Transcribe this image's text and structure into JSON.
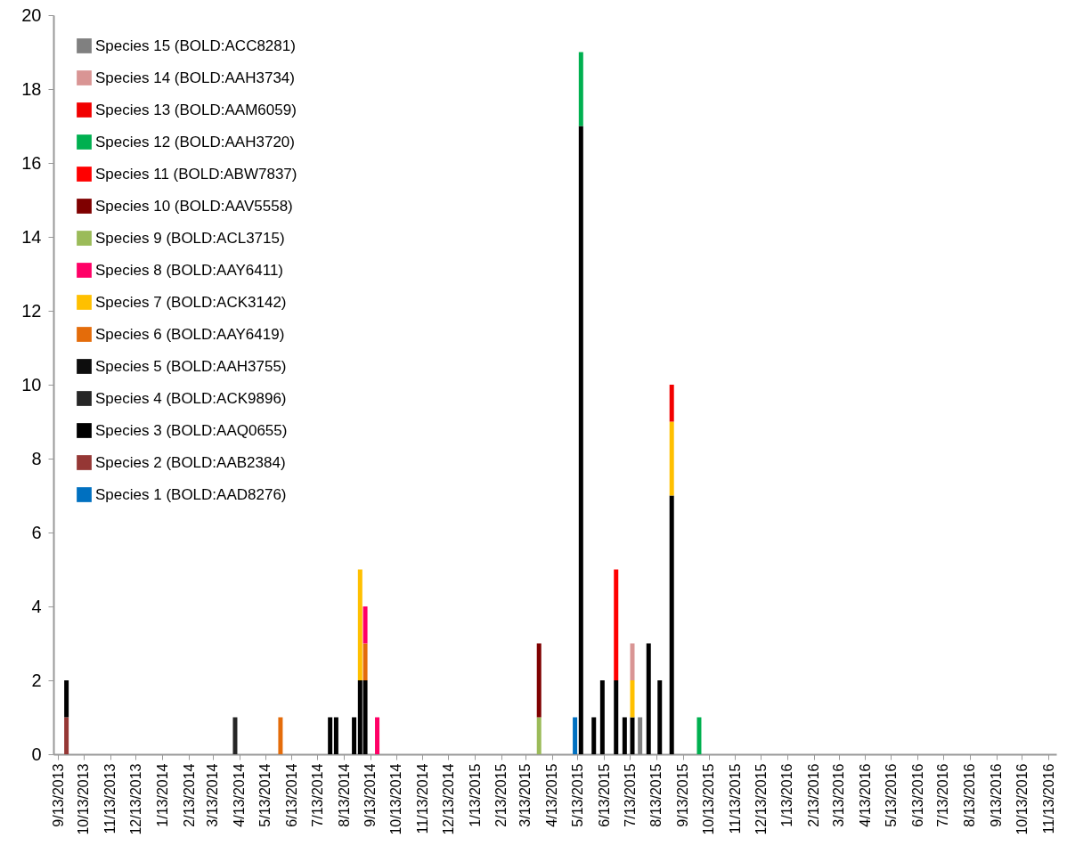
{
  "chart_data": {
    "type": "bar",
    "stacked": true,
    "legend": "top left",
    "grid": false,
    "x": [
      "2013-09-23",
      "2014-04-08",
      "2014-05-31",
      "2014-07-28",
      "2014-08-04",
      "2014-08-25",
      "2014-09-01",
      "2014-09-07",
      "2014-09-21",
      "2015-03-29",
      "2015-05-10",
      "2015-05-17",
      "2015-06-01",
      "2015-06-11",
      "2015-06-27",
      "2015-07-07",
      "2015-07-16",
      "2015-07-25",
      "2015-08-04",
      "2015-08-17",
      "2015-08-31",
      "2015-10-02"
    ],
    "xlim": [
      "2013-09-13",
      "2016-11-17"
    ],
    "xticks": [
      {
        "value": "2013-09-13",
        "label": "9/13/2013"
      },
      {
        "value": "2013-10-13",
        "label": "10/13/2013"
      },
      {
        "value": "2013-11-13",
        "label": "11/13/2013"
      },
      {
        "value": "2013-12-13",
        "label": "12/13/2013"
      },
      {
        "value": "2014-01-13",
        "label": "1/13/2014"
      },
      {
        "value": "2014-02-13",
        "label": "2/13/2014"
      },
      {
        "value": "2014-03-13",
        "label": "3/13/2014"
      },
      {
        "value": "2014-04-13",
        "label": "4/13/2014"
      },
      {
        "value": "2014-05-13",
        "label": "5/13/2014"
      },
      {
        "value": "2014-06-13",
        "label": "6/13/2014"
      },
      {
        "value": "2014-07-13",
        "label": "7/13/2014"
      },
      {
        "value": "2014-08-13",
        "label": "8/13/2014"
      },
      {
        "value": "2014-09-13",
        "label": "9/13/2014"
      },
      {
        "value": "2014-10-13",
        "label": "10/13/2014"
      },
      {
        "value": "2014-11-13",
        "label": "11/13/2014"
      },
      {
        "value": "2014-12-13",
        "label": "12/13/2014"
      },
      {
        "value": "2015-01-13",
        "label": "1/13/2015"
      },
      {
        "value": "2015-02-13",
        "label": "2/13/2015"
      },
      {
        "value": "2015-03-13",
        "label": "3/13/2015"
      },
      {
        "value": "2015-04-13",
        "label": "4/13/2015"
      },
      {
        "value": "2015-05-13",
        "label": "5/13/2015"
      },
      {
        "value": "2015-06-13",
        "label": "6/13/2015"
      },
      {
        "value": "2015-07-13",
        "label": "7/13/2015"
      },
      {
        "value": "2015-08-13",
        "label": "8/13/2015"
      },
      {
        "value": "2015-09-13",
        "label": "9/13/2015"
      },
      {
        "value": "2015-10-13",
        "label": "10/13/2015"
      },
      {
        "value": "2015-11-13",
        "label": "11/13/2015"
      },
      {
        "value": "2015-12-13",
        "label": "12/13/2015"
      },
      {
        "value": "2016-01-13",
        "label": "1/13/2016"
      },
      {
        "value": "2016-02-13",
        "label": "2/13/2016"
      },
      {
        "value": "2016-03-13",
        "label": "3/13/2016"
      },
      {
        "value": "2016-04-13",
        "label": "4/13/2016"
      },
      {
        "value": "2016-05-13",
        "label": "5/13/2016"
      },
      {
        "value": "2016-06-13",
        "label": "6/13/2016"
      },
      {
        "value": "2016-07-13",
        "label": "7/13/2016"
      },
      {
        "value": "2016-08-13",
        "label": "8/13/2016"
      },
      {
        "value": "2016-09-13",
        "label": "9/13/2016"
      },
      {
        "value": "2016-10-13",
        "label": "10/13/2016"
      },
      {
        "value": "2016-11-13",
        "label": "11/13/2016"
      }
    ],
    "ylim": [
      0,
      20
    ],
    "yticks": [
      0,
      2,
      4,
      6,
      8,
      10,
      12,
      14,
      16,
      18,
      20
    ],
    "series": [
      {
        "name": "Species 1 (BOLD:AAD8276)",
        "color": "#0070c0",
        "values": [
          null,
          null,
          null,
          null,
          null,
          null,
          null,
          null,
          null,
          null,
          1,
          null,
          null,
          null,
          null,
          null,
          null,
          null,
          null,
          null,
          null,
          null
        ]
      },
      {
        "name": "Species 2 (BOLD:AAB2384)",
        "color": "#953735",
        "values": [
          1,
          null,
          null,
          null,
          null,
          null,
          null,
          null,
          null,
          null,
          null,
          null,
          null,
          null,
          null,
          null,
          null,
          null,
          null,
          null,
          null,
          null
        ]
      },
      {
        "name": "Species 3 (BOLD:AAQ0655)",
        "color": "#000000",
        "values": [
          1,
          null,
          null,
          1,
          1,
          1,
          2,
          2,
          null,
          null,
          null,
          17,
          1,
          2,
          2,
          1,
          1,
          null,
          3,
          2,
          7,
          null
        ]
      },
      {
        "name": "Species 4 (BOLD:ACK9896)",
        "color": "#262626",
        "values": [
          null,
          1,
          null,
          null,
          null,
          null,
          null,
          null,
          null,
          null,
          null,
          null,
          null,
          null,
          null,
          null,
          null,
          null,
          null,
          null,
          null,
          null
        ]
      },
      {
        "name": "Species 5 (BOLD:AAH3755)",
        "color": "#0d0d0d",
        "values": [
          null,
          null,
          null,
          null,
          null,
          null,
          null,
          null,
          null,
          null,
          null,
          null,
          null,
          null,
          null,
          null,
          null,
          null,
          null,
          null,
          null,
          null
        ]
      },
      {
        "name": "Species 6 (BOLD:AAY6419)",
        "color": "#e46c0a",
        "values": [
          null,
          null,
          1,
          null,
          null,
          null,
          null,
          1,
          null,
          null,
          null,
          null,
          null,
          null,
          null,
          null,
          null,
          null,
          null,
          null,
          null,
          null
        ]
      },
      {
        "name": "Species 7 (BOLD:ACK3142)",
        "color": "#ffc000",
        "values": [
          null,
          null,
          null,
          null,
          null,
          null,
          3,
          null,
          null,
          null,
          null,
          null,
          null,
          null,
          null,
          null,
          1,
          null,
          null,
          null,
          2,
          null
        ]
      },
      {
        "name": "Species 8 (BOLD:AAY6411)",
        "color": "#ff0066",
        "values": [
          null,
          null,
          null,
          null,
          null,
          null,
          null,
          1,
          1,
          null,
          null,
          null,
          null,
          null,
          null,
          null,
          null,
          null,
          null,
          null,
          null,
          null
        ]
      },
      {
        "name": "Species 9 (BOLD:ACL3715)",
        "color": "#9bbb59",
        "values": [
          null,
          null,
          null,
          null,
          null,
          null,
          null,
          null,
          null,
          1,
          null,
          null,
          null,
          null,
          null,
          null,
          null,
          null,
          null,
          null,
          null,
          null
        ]
      },
      {
        "name": "Species 10 (BOLD:AAV5558)",
        "color": "#7f0000",
        "values": [
          null,
          null,
          null,
          null,
          null,
          null,
          null,
          null,
          null,
          2,
          null,
          null,
          null,
          null,
          null,
          null,
          null,
          null,
          null,
          null,
          null,
          null
        ]
      },
      {
        "name": "Species 11 (BOLD:ABW7837)",
        "color": "#ff0000",
        "values": [
          null,
          null,
          null,
          null,
          null,
          null,
          null,
          null,
          null,
          null,
          null,
          null,
          null,
          null,
          3,
          null,
          null,
          null,
          null,
          null,
          null,
          null
        ]
      },
      {
        "name": "Species 12 (BOLD:AAH3720)",
        "color": "#00b050",
        "values": [
          null,
          null,
          null,
          null,
          null,
          null,
          null,
          null,
          null,
          null,
          null,
          2,
          null,
          null,
          null,
          null,
          null,
          null,
          null,
          null,
          null,
          1
        ]
      },
      {
        "name": "Species 13 (BOLD:AAM6059)",
        "color": "#f20000",
        "values": [
          null,
          null,
          null,
          null,
          null,
          null,
          null,
          null,
          null,
          null,
          null,
          null,
          null,
          null,
          null,
          null,
          null,
          null,
          null,
          null,
          1,
          null
        ]
      },
      {
        "name": "Species 14 (BOLD:AAH3734)",
        "color": "#d99594",
        "values": [
          null,
          null,
          null,
          null,
          null,
          null,
          null,
          null,
          null,
          null,
          null,
          null,
          null,
          null,
          null,
          null,
          1,
          null,
          null,
          null,
          null,
          null
        ]
      },
      {
        "name": "Species 15 (BOLD:ACC8281)",
        "color": "#808080",
        "values": [
          null,
          null,
          null,
          null,
          null,
          null,
          null,
          null,
          null,
          null,
          null,
          null,
          null,
          null,
          null,
          null,
          null,
          1,
          null,
          null,
          null,
          null
        ]
      }
    ]
  }
}
